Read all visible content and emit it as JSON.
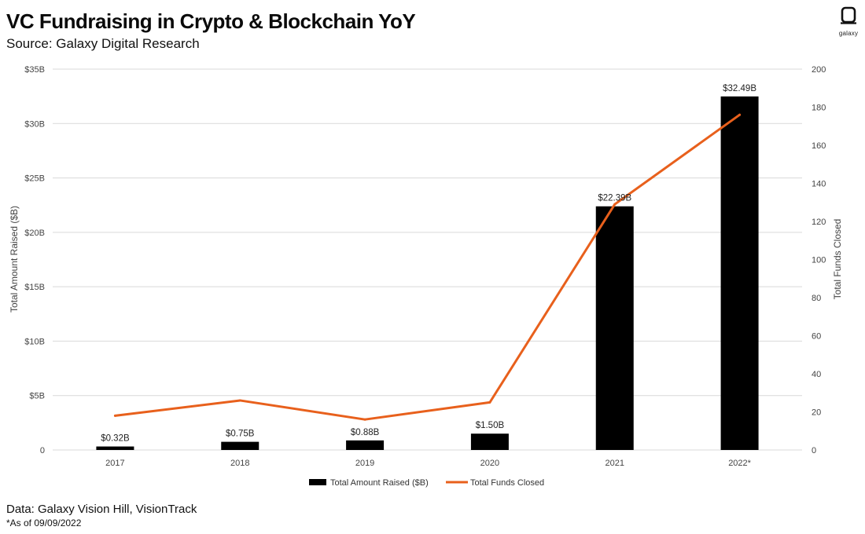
{
  "header": {
    "title": "VC Fundraising in Crypto & Blockchain YoY",
    "subtitle": "Source: Galaxy Digital Research",
    "logo_text": "galaxy"
  },
  "footer": {
    "data_source": "Data: Galaxy Vision Hill, VisionTrack",
    "note": "*As of 09/09/2022"
  },
  "colors": {
    "bar": "#000000",
    "line": "#e8601c",
    "grid": "#d9d9d9"
  },
  "chart_data": {
    "type": "bar",
    "title": "VC Fundraising in Crypto & Blockchain YoY",
    "categories": [
      "2017",
      "2018",
      "2019",
      "2020",
      "2021",
      "2022*"
    ],
    "series": [
      {
        "name": "Total Amount Raised ($B)",
        "type": "bar",
        "axis": "left",
        "values": [
          0.32,
          0.75,
          0.88,
          1.5,
          22.39,
          32.49
        ],
        "labels": [
          "$0.32B",
          "$0.75B",
          "$0.88B",
          "$1.50B",
          "$22.39B",
          "$32.49B"
        ]
      },
      {
        "name": "Total Funds Closed",
        "type": "line",
        "axis": "right",
        "values": [
          18,
          26,
          16,
          25,
          129,
          176
        ]
      }
    ],
    "ylabel_left": "Total Amount Raised ($B)",
    "ylabel_right": "Total Funds Closed",
    "ylim_left": [
      0,
      35
    ],
    "ylim_right": [
      0,
      200
    ],
    "yticks_left": [
      "0",
      "$5B",
      "$10B",
      "$15B",
      "$20B",
      "$25B",
      "$30B",
      "$35B"
    ],
    "yticks_right": [
      "0",
      "20",
      "40",
      "60",
      "80",
      "100",
      "120",
      "140",
      "160",
      "180",
      "200"
    ],
    "grid": true,
    "legend": [
      "Total Amount Raised ($B)",
      "Total Funds Closed"
    ],
    "legend_position": "bottom-center"
  }
}
